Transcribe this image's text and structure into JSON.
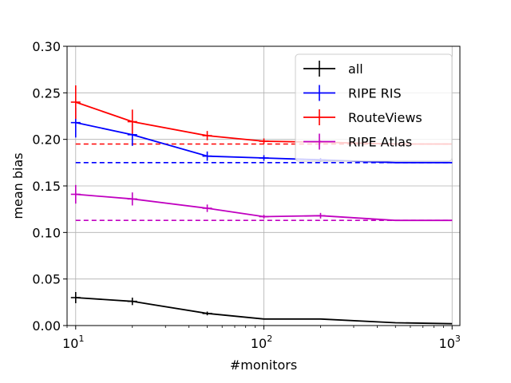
{
  "chart_data": {
    "type": "line",
    "xlabel": "#monitors",
    "ylabel": "mean bias",
    "xscale": "log",
    "xlim": [
      9,
      1100
    ],
    "ylim": [
      0,
      0.3
    ],
    "xticks": [
      {
        "value": 10,
        "base": "10",
        "exp": "1"
      },
      {
        "value": 100,
        "base": "10",
        "exp": "2"
      },
      {
        "value": 1000,
        "base": "10",
        "exp": "3"
      }
    ],
    "yticks": [
      {
        "value": 0.0,
        "label": "0.00"
      },
      {
        "value": 0.05,
        "label": "0.05"
      },
      {
        "value": 0.1,
        "label": "0.10"
      },
      {
        "value": 0.15,
        "label": "0.15"
      },
      {
        "value": 0.2,
        "label": "0.20"
      },
      {
        "value": 0.25,
        "label": "0.25"
      },
      {
        "value": 0.3,
        "label": "0.30"
      }
    ],
    "grid": true,
    "legend_position": "top-right",
    "series": [
      {
        "name": "all",
        "color": "#000000",
        "x": [
          10,
          20,
          50,
          100,
          200,
          500,
          1000
        ],
        "y": [
          0.03,
          0.026,
          0.013,
          0.007,
          0.007,
          0.003,
          0.002
        ],
        "err": [
          0.006,
          0.004,
          0.002,
          0.0015,
          0.001,
          0.0005,
          0.0003
        ],
        "err_x": [
          10,
          20,
          50
        ],
        "baseline": null
      },
      {
        "name": "RIPE RIS",
        "color": "#0000ff",
        "x": [
          10,
          20,
          50,
          100,
          200,
          500,
          1000
        ],
        "y": [
          0.218,
          0.205,
          0.182,
          0.18,
          0.178,
          0.175,
          0.175
        ],
        "err": [
          0.016,
          0.012,
          0.005,
          0.003,
          0.002,
          0.001,
          0.0005
        ],
        "err_x": [
          10,
          20,
          50,
          100,
          200
        ],
        "baseline": 0.175
      },
      {
        "name": "RouteViews",
        "color": "#ff0000",
        "x": [
          10,
          20,
          50,
          100,
          200,
          500,
          1000
        ],
        "y": [
          0.24,
          0.219,
          0.204,
          0.198,
          0.197,
          0.195,
          0.195
        ],
        "err": [
          0.018,
          0.013,
          0.005,
          0.003,
          0.002,
          0.001,
          0.0005
        ],
        "err_x": [
          10,
          20,
          50,
          100,
          200
        ],
        "baseline": 0.195
      },
      {
        "name": "RIPE Atlas",
        "color": "#c000c0",
        "x": [
          10,
          20,
          50,
          100,
          200,
          500,
          1000
        ],
        "y": [
          0.141,
          0.136,
          0.126,
          0.117,
          0.118,
          0.113,
          0.113
        ],
        "err": [
          0.01,
          0.007,
          0.004,
          0.002,
          0.003,
          0.001,
          0.0005
        ],
        "err_x": [
          10,
          20,
          50,
          100,
          200
        ],
        "baseline": 0.113
      }
    ]
  }
}
